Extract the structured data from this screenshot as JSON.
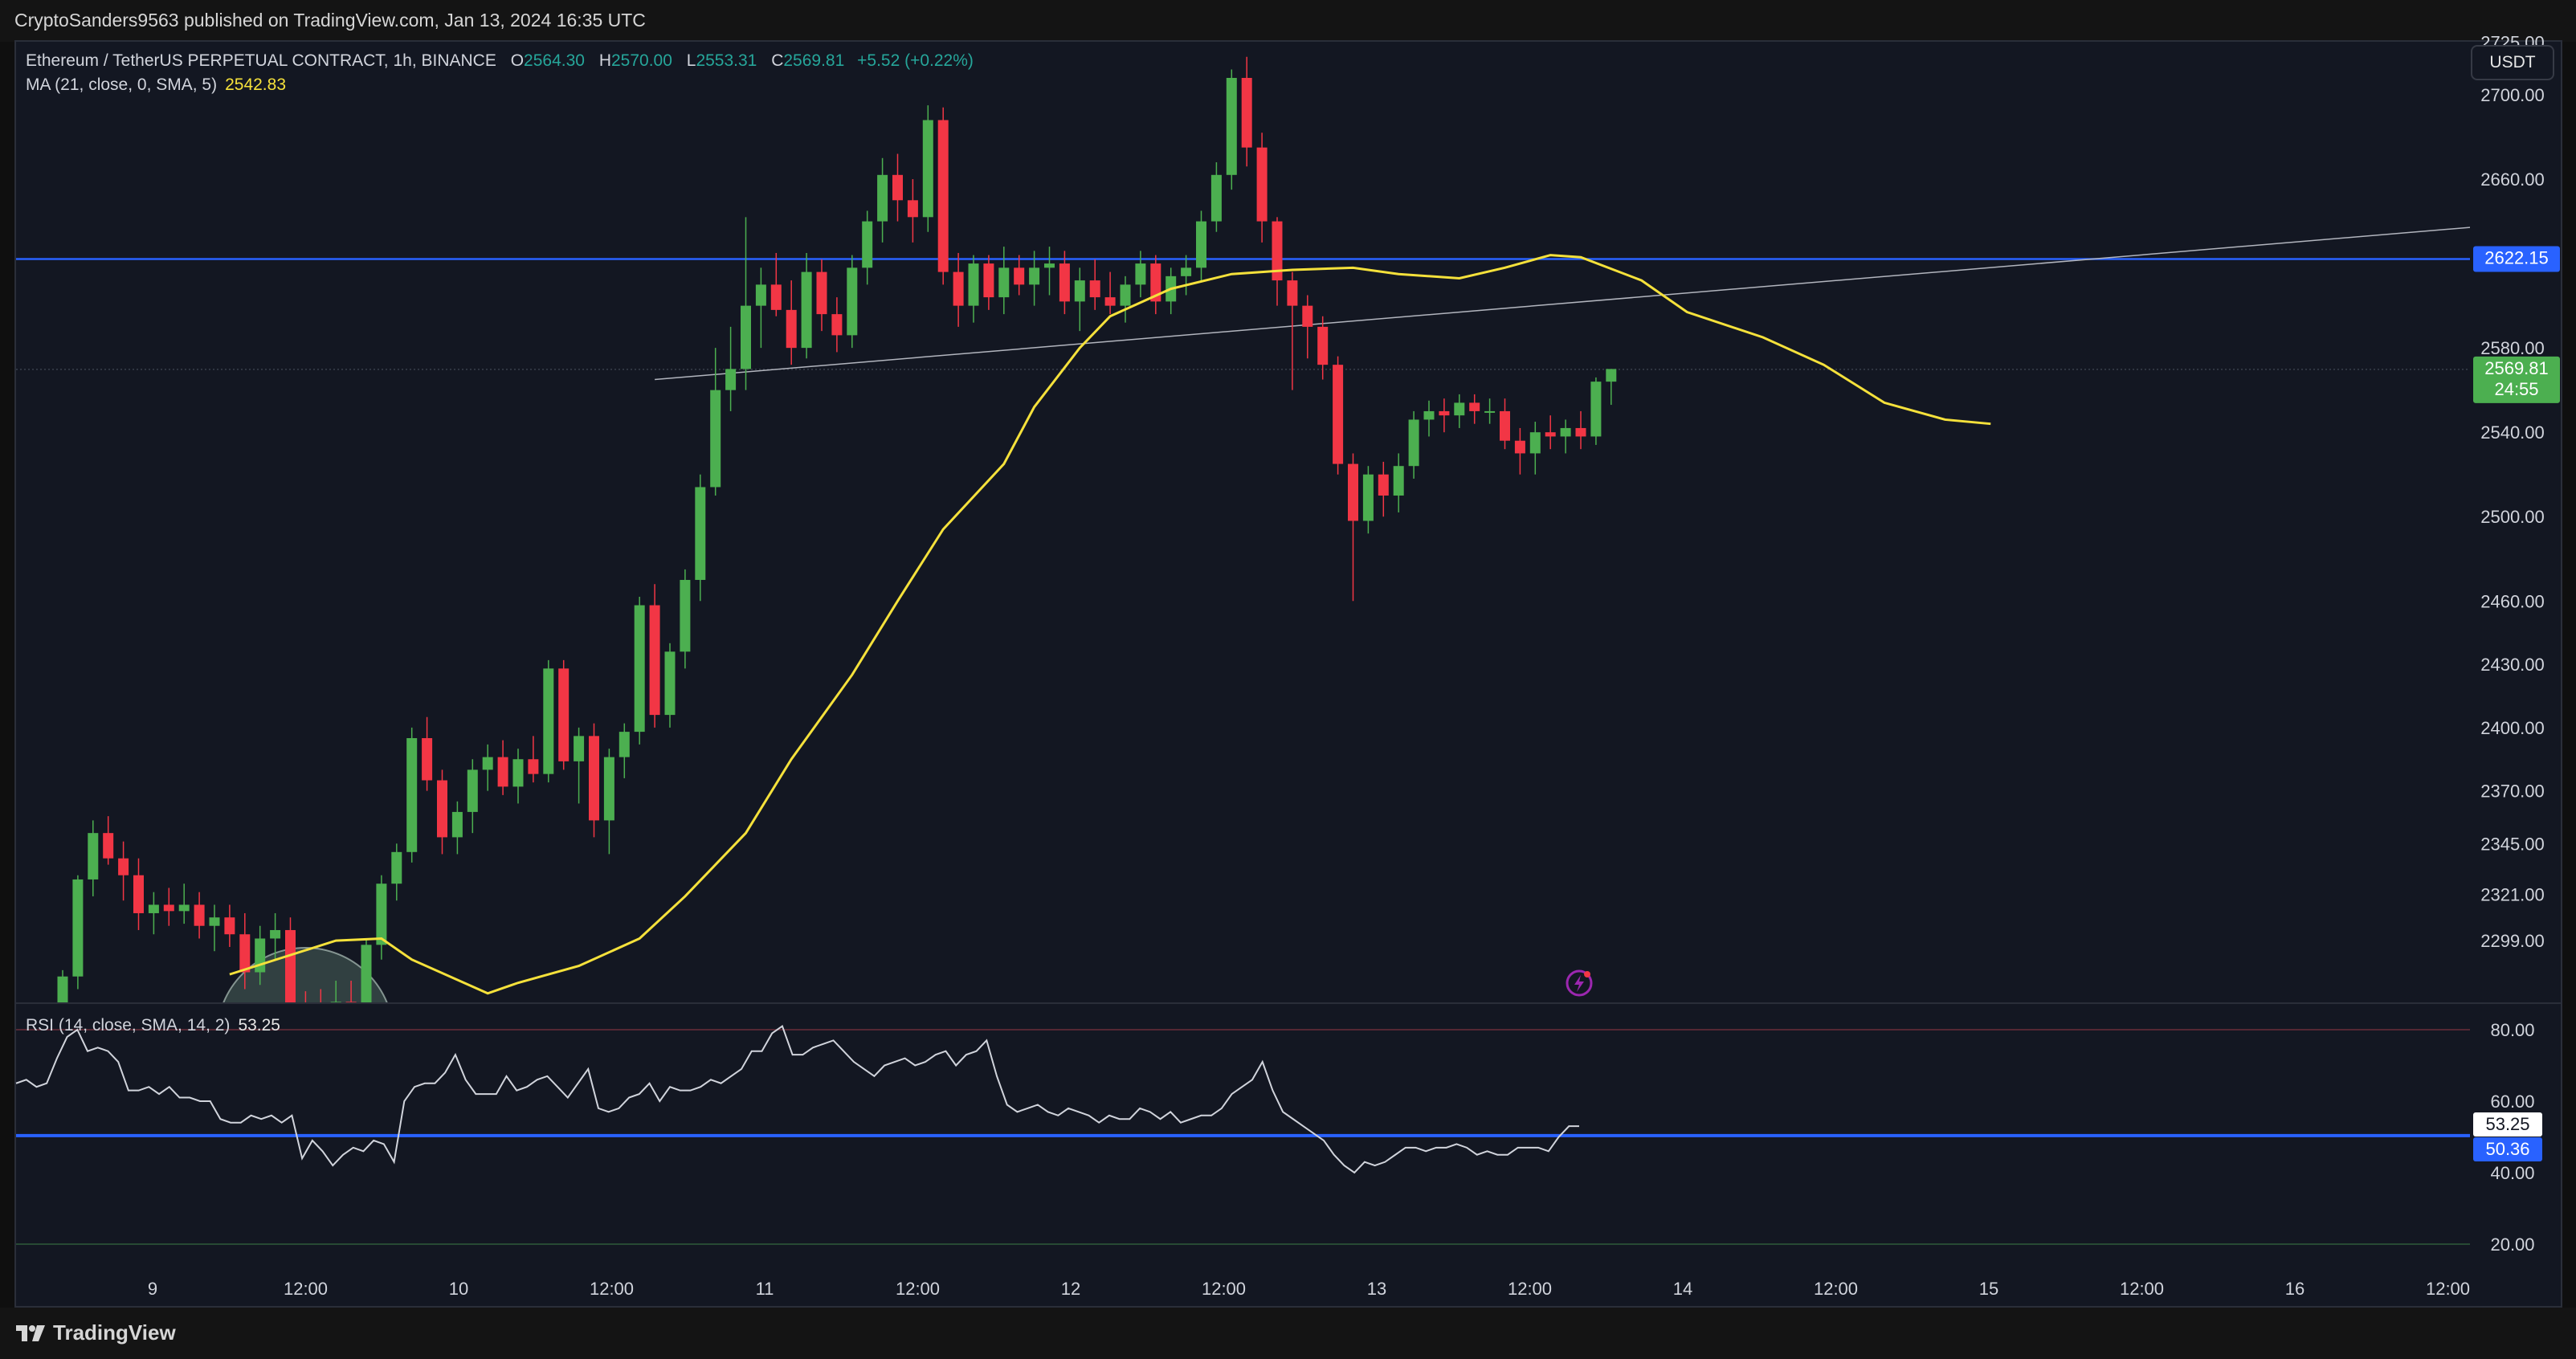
{
  "published": "CryptoSanders9563 published on TradingView.com, Jan 13, 2024 16:35 UTC",
  "brand": "TradingView",
  "currency_button": "USDT",
  "legend": {
    "symbol": "Ethereum / TetherUS PERPETUAL CONTRACT, 1h, BINANCE",
    "open_label": "O",
    "open": "2564.30",
    "high_label": "H",
    "high": "2570.00",
    "low_label": "L",
    "low": "2553.31",
    "close_label": "C",
    "close": "2569.81",
    "change": "+5.52 (+0.22%)",
    "ma_label": "MA (21, close, 0, SMA, 5)",
    "ma_value": "2542.83",
    "rsi_label": "RSI (14, close, SMA, 14, 2)",
    "rsi_value": "53.25"
  },
  "colors": {
    "up": "#4caf50",
    "down": "#f23645",
    "ma": "#f5e13b",
    "hline": "#2962ff",
    "rsi": "#d1d4dc"
  },
  "chart_data": [
    {
      "type": "candlestick",
      "title": "Ethereum / TetherUS PERPETUAL CONTRACT, 1h, BINANCE",
      "price_axis_ticks": [
        2299.0,
        2321.0,
        2345.0,
        2370.0,
        2400.0,
        2430.0,
        2460.0,
        2500.0,
        2540.0,
        2580.0,
        2660.0,
        2700.0,
        2725.0
      ],
      "price_tick_labels": [
        "2299.00",
        "2321.00",
        "2345.00",
        "2370.00",
        "2400.00",
        "2430.00",
        "2460.00",
        "2500.00",
        "2540.00",
        "2580.00",
        "2660.00",
        "2700.00",
        "2725.00"
      ],
      "time_axis_labels": [
        "9",
        "12:00",
        "10",
        "12:00",
        "11",
        "12:00",
        "12",
        "12:00",
        "13",
        "12:00",
        "14",
        "12:00",
        "15",
        "12:00",
        "16",
        "12:00"
      ],
      "ylim": [
        2270,
        2745
      ],
      "horizontal_line": {
        "price": 2622.15,
        "label": "2622.15"
      },
      "last_price": {
        "price": 2569.81,
        "label": "2569.81",
        "countdown": "24:55"
      },
      "trendline": {
        "from": {
          "bar": 39,
          "price": 2565
        },
        "to": {
          "bar": 160,
          "price": 2638
        }
      },
      "candles": [
        [
          2258,
          2285,
          2240,
          2282
        ],
        [
          2282,
          2330,
          2276,
          2328
        ],
        [
          2328,
          2356,
          2320,
          2350
        ],
        [
          2350,
          2358,
          2335,
          2338
        ],
        [
          2338,
          2346,
          2318,
          2330
        ],
        [
          2330,
          2338,
          2304,
          2312
        ],
        [
          2312,
          2322,
          2302,
          2316
        ],
        [
          2316,
          2324,
          2306,
          2313
        ],
        [
          2313,
          2326,
          2307,
          2316
        ],
        [
          2316,
          2322,
          2300,
          2306
        ],
        [
          2306,
          2316,
          2294,
          2310
        ],
        [
          2310,
          2316,
          2296,
          2302
        ],
        [
          2302,
          2312,
          2276,
          2284
        ],
        [
          2284,
          2306,
          2278,
          2300
        ],
        [
          2300,
          2312,
          2290,
          2304
        ],
        [
          2304,
          2310,
          2262,
          2268
        ],
        [
          2268,
          2275,
          2250,
          2262
        ],
        [
          2262,
          2276,
          2245,
          2254
        ],
        [
          2254,
          2280,
          2246,
          2270
        ],
        [
          2270,
          2280,
          2250,
          2262
        ],
        [
          2262,
          2300,
          2255,
          2297
        ],
        [
          2297,
          2330,
          2290,
          2326
        ],
        [
          2326,
          2345,
          2318,
          2341
        ],
        [
          2341,
          2400,
          2336,
          2395
        ],
        [
          2395,
          2405,
          2370,
          2375
        ],
        [
          2375,
          2380,
          2340,
          2348
        ],
        [
          2348,
          2365,
          2340,
          2360
        ],
        [
          2360,
          2385,
          2350,
          2380
        ],
        [
          2380,
          2392,
          2370,
          2386
        ],
        [
          2386,
          2394,
          2368,
          2372
        ],
        [
          2372,
          2390,
          2364,
          2385
        ],
        [
          2385,
          2396,
          2374,
          2378
        ],
        [
          2378,
          2432,
          2374,
          2428
        ],
        [
          2428,
          2432,
          2380,
          2384
        ],
        [
          2384,
          2400,
          2364,
          2396
        ],
        [
          2396,
          2402,
          2348,
          2356
        ],
        [
          2356,
          2390,
          2340,
          2386
        ],
        [
          2386,
          2402,
          2376,
          2398
        ],
        [
          2398,
          2462,
          2392,
          2458
        ],
        [
          2458,
          2468,
          2400,
          2406
        ],
        [
          2406,
          2440,
          2400,
          2436
        ],
        [
          2436,
          2475,
          2428,
          2470
        ],
        [
          2470,
          2520,
          2460,
          2514
        ],
        [
          2514,
          2580,
          2510,
          2560
        ],
        [
          2560,
          2590,
          2550,
          2570
        ],
        [
          2570,
          2642,
          2560,
          2600
        ],
        [
          2600,
          2618,
          2580,
          2610
        ],
        [
          2610,
          2625,
          2595,
          2598
        ],
        [
          2598,
          2612,
          2572,
          2580
        ],
        [
          2580,
          2625,
          2575,
          2616
        ],
        [
          2616,
          2622,
          2588,
          2596
        ],
        [
          2596,
          2604,
          2578,
          2586
        ],
        [
          2586,
          2624,
          2580,
          2618
        ],
        [
          2618,
          2645,
          2610,
          2640
        ],
        [
          2640,
          2670,
          2630,
          2662
        ],
        [
          2662,
          2672,
          2640,
          2650
        ],
        [
          2650,
          2660,
          2630,
          2642
        ],
        [
          2642,
          2695,
          2635,
          2688
        ],
        [
          2688,
          2694,
          2610,
          2616
        ],
        [
          2616,
          2625,
          2590,
          2600
        ],
        [
          2600,
          2624,
          2592,
          2620
        ],
        [
          2620,
          2624,
          2598,
          2604
        ],
        [
          2604,
          2628,
          2596,
          2618
        ],
        [
          2618,
          2624,
          2605,
          2610
        ],
        [
          2610,
          2626,
          2600,
          2618
        ],
        [
          2618,
          2628,
          2605,
          2620
        ],
        [
          2620,
          2626,
          2596,
          2602
        ],
        [
          2602,
          2618,
          2588,
          2612
        ],
        [
          2612,
          2622,
          2598,
          2604
        ],
        [
          2604,
          2616,
          2596,
          2600
        ],
        [
          2600,
          2614,
          2592,
          2610
        ],
        [
          2610,
          2626,
          2604,
          2620
        ],
        [
          2620,
          2624,
          2596,
          2602
        ],
        [
          2602,
          2618,
          2596,
          2614
        ],
        [
          2614,
          2624,
          2605,
          2618
        ],
        [
          2618,
          2645,
          2612,
          2640
        ],
        [
          2640,
          2668,
          2635,
          2662
        ],
        [
          2662,
          2712,
          2655,
          2708
        ],
        [
          2708,
          2718,
          2666,
          2675
        ],
        [
          2675,
          2682,
          2630,
          2640
        ],
        [
          2640,
          2642,
          2600,
          2612
        ],
        [
          2612,
          2616,
          2560,
          2600
        ],
        [
          2600,
          2605,
          2575,
          2590
        ],
        [
          2590,
          2595,
          2565,
          2572
        ],
        [
          2572,
          2576,
          2520,
          2525
        ],
        [
          2525,
          2530,
          2460,
          2498
        ],
        [
          2498,
          2524,
          2492,
          2520
        ],
        [
          2520,
          2526,
          2500,
          2510
        ],
        [
          2510,
          2530,
          2502,
          2524
        ],
        [
          2524,
          2550,
          2518,
          2546
        ],
        [
          2546,
          2555,
          2538,
          2550
        ],
        [
          2550,
          2556,
          2540,
          2548
        ],
        [
          2548,
          2558,
          2542,
          2554
        ],
        [
          2554,
          2558,
          2544,
          2550
        ],
        [
          2550,
          2556,
          2544,
          2550
        ],
        [
          2550,
          2556,
          2532,
          2536
        ],
        [
          2536,
          2542,
          2520,
          2530
        ],
        [
          2530,
          2545,
          2520,
          2540
        ],
        [
          2540,
          2548,
          2532,
          2538
        ],
        [
          2538,
          2546,
          2530,
          2542
        ],
        [
          2542,
          2550,
          2532,
          2538
        ],
        [
          2538,
          2566,
          2534,
          2564
        ],
        [
          2564,
          2570,
          2553,
          2570
        ]
      ],
      "ma": [
        {
          "bar": 11,
          "value": 2283
        },
        {
          "bar": 18,
          "value": 2299
        },
        {
          "bar": 21,
          "value": 2300
        },
        {
          "bar": 23,
          "value": 2290
        },
        {
          "bar": 28,
          "value": 2274
        },
        {
          "bar": 30,
          "value": 2279
        },
        {
          "bar": 34,
          "value": 2287
        },
        {
          "bar": 38,
          "value": 2300
        },
        {
          "bar": 41,
          "value": 2320
        },
        {
          "bar": 45,
          "value": 2350
        },
        {
          "bar": 48,
          "value": 2385
        },
        {
          "bar": 52,
          "value": 2425
        },
        {
          "bar": 55,
          "value": 2460
        },
        {
          "bar": 58,
          "value": 2494
        },
        {
          "bar": 62,
          "value": 2525
        },
        {
          "bar": 64,
          "value": 2552
        },
        {
          "bar": 67,
          "value": 2580
        },
        {
          "bar": 69,
          "value": 2595
        },
        {
          "bar": 73,
          "value": 2608
        },
        {
          "bar": 77,
          "value": 2615
        },
        {
          "bar": 81,
          "value": 2617
        },
        {
          "bar": 85,
          "value": 2618
        },
        {
          "bar": 88,
          "value": 2615
        },
        {
          "bar": 92,
          "value": 2613
        },
        {
          "bar": 95,
          "value": 2618
        },
        {
          "bar": 98,
          "value": 2624
        },
        {
          "bar": 100,
          "value": 2623
        },
        {
          "bar": 104,
          "value": 2612
        },
        {
          "bar": 107,
          "value": 2597
        },
        {
          "bar": 112,
          "value": 2585
        },
        {
          "bar": 116,
          "value": 2572
        },
        {
          "bar": 120,
          "value": 2554
        },
        {
          "bar": 124,
          "value": 2546
        },
        {
          "bar": 127,
          "value": 2544
        }
      ]
    },
    {
      "type": "line",
      "title": "RSI (14, close, SMA, 14, 2)",
      "y_axis_ticks": [
        20.0,
        40.0,
        60.0,
        80.0
      ],
      "y_tick_labels": [
        "20.00",
        "40.00",
        "60.00",
        "80.00"
      ],
      "ylim": [
        18,
        84
      ],
      "horizontal_line": {
        "value": 50.36,
        "label": "50.36"
      },
      "last_value": {
        "value": 53.25,
        "label": "53.25"
      },
      "series": [
        {
          "values": [
            65,
            66,
            64,
            65,
            72,
            78,
            80,
            74,
            75,
            74,
            71,
            63,
            63,
            64,
            62,
            64,
            61,
            61,
            60,
            60,
            55,
            54,
            54,
            56,
            55,
            56,
            54,
            56,
            44,
            49,
            46,
            42,
            45,
            47,
            46,
            49,
            48,
            43,
            60,
            64,
            65,
            65,
            68,
            73,
            66,
            62,
            62,
            62,
            67,
            63,
            64,
            66,
            67,
            64,
            61,
            65,
            69,
            58,
            57,
            58,
            61,
            62,
            65,
            60,
            64,
            63,
            63,
            64,
            66,
            65,
            67,
            69,
            74,
            74,
            79,
            81,
            73,
            73,
            75,
            76,
            77,
            74,
            71,
            69,
            67,
            70,
            71,
            72,
            70,
            71,
            73,
            74,
            70,
            73,
            74,
            77,
            67,
            59,
            57,
            58,
            59,
            57,
            56,
            58,
            57,
            56,
            54,
            56,
            55,
            55,
            58,
            57,
            55,
            57,
            54,
            55,
            56,
            56,
            58,
            62,
            64,
            66,
            71,
            63,
            57,
            55,
            53,
            51,
            49,
            45,
            42,
            40,
            43,
            42,
            43,
            45,
            47,
            47,
            46,
            47,
            47,
            48,
            47,
            45,
            46,
            45,
            45,
            47,
            47,
            47,
            46,
            50,
            53,
            53
          ]
        }
      ]
    }
  ]
}
